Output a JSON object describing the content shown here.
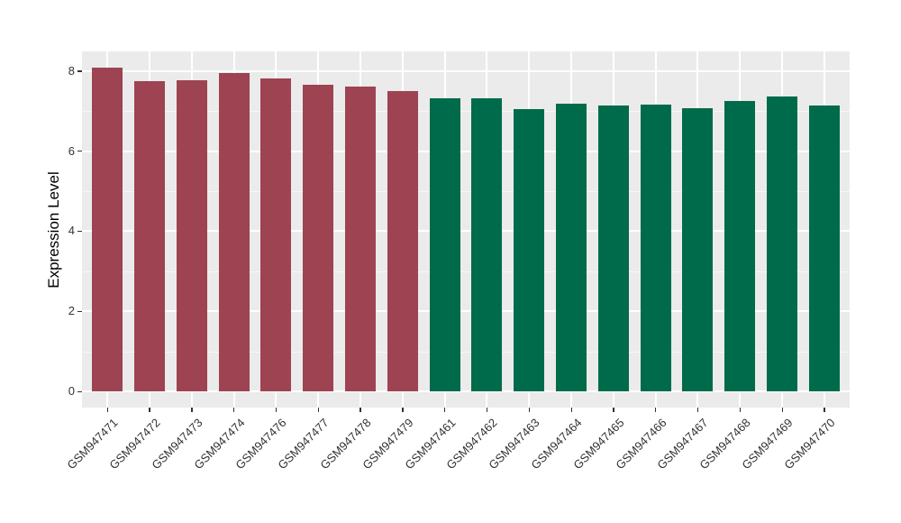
{
  "figure": {
    "background": "#FFFFFF",
    "panel_background": "#EBEBEB",
    "grid_major_color": "#FFFFFF",
    "grid_minor_color": "#F7F7F7",
    "axis_text_color": "#333333",
    "axis_title_color": "#000000",
    "red_group_color": "#9D4352",
    "green_group_color": "#006B4A"
  },
  "chart_data": {
    "type": "bar",
    "title": "",
    "xlabel": "",
    "ylabel": "Expression Level",
    "categories": [
      "GSM947471",
      "GSM947472",
      "GSM947473",
      "GSM947474",
      "GSM947476",
      "GSM947477",
      "GSM947478",
      "GSM947479",
      "GSM947461",
      "GSM947462",
      "GSM947463",
      "GSM947464",
      "GSM947465",
      "GSM947466",
      "GSM947467",
      "GSM947468",
      "GSM947469",
      "GSM947470"
    ],
    "values": [
      8.08,
      7.74,
      7.78,
      7.96,
      7.81,
      7.66,
      7.62,
      7.5,
      7.31,
      7.32,
      7.04,
      7.18,
      7.13,
      7.16,
      7.07,
      7.26,
      7.37,
      7.13
    ],
    "colors": [
      "#9D4352",
      "#9D4352",
      "#9D4352",
      "#9D4352",
      "#9D4352",
      "#9D4352",
      "#9D4352",
      "#9D4352",
      "#006B4A",
      "#006B4A",
      "#006B4A",
      "#006B4A",
      "#006B4A",
      "#006B4A",
      "#006B4A",
      "#006B4A",
      "#006B4A",
      "#006B4A"
    ],
    "ylim": [
      0,
      8.5
    ],
    "yticks": [
      0,
      2,
      4,
      6,
      8
    ],
    "minor_yticks": [
      1,
      3,
      5,
      7
    ],
    "grid": true,
    "legend_position": "none",
    "x_tick_rotation": 45
  }
}
